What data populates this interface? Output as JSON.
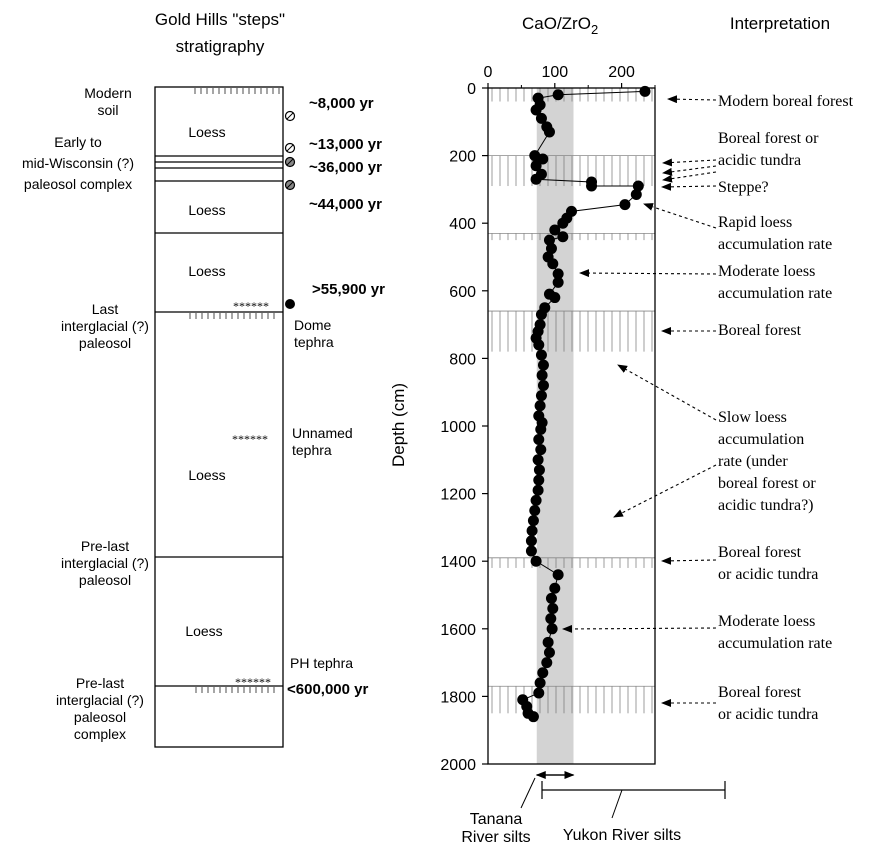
{
  "strat": {
    "title_line1": "Gold Hills \"steps\"",
    "title_line2": "stratigraphy",
    "modern_soil_1": "Modern",
    "modern_soil_2": "soil",
    "loess": "Loess",
    "early_1": "Early to",
    "early_2": "mid-Wisconsin (?)",
    "early_3": "paleosol complex",
    "last_ig_1": "Last",
    "last_ig_2": "interglacial (?)",
    "last_ig_3": "paleosol",
    "prelast_1": "Pre-last",
    "prelast_2": "interglacial (?)",
    "prelast_3": "paleosol",
    "prelast_c1": "Pre-last",
    "prelast_c2": "interglacial (?)",
    "prelast_c3": "paleosol",
    "prelast_c4": "complex",
    "stars": "******",
    "dome_1": "Dome",
    "dome_2": "tephra",
    "unnamed_1": "Unnamed",
    "unnamed_2": "tephra",
    "ph": "PH tephra",
    "age_8000": "~8,000 yr",
    "age_13000": "~13,000 yr",
    "age_36000": "~36,000 yr",
    "age_44000": "~44,000 yr",
    "age_55900": ">55,900 yr",
    "age_600000": "<600,000 yr"
  },
  "chart_data": {
    "type": "scatter",
    "title": "CaO/ZrO2",
    "ylabel": "Depth (cm)",
    "xlim": [
      0,
      250
    ],
    "ylim": [
      0,
      2000
    ],
    "y_inverted": true,
    "x_ticks": [
      "0",
      "100",
      "200"
    ],
    "y_ticks": [
      "0",
      "200",
      "400",
      "600",
      "800",
      "1000",
      "1200",
      "1400",
      "1600",
      "1800",
      "2000"
    ],
    "marker": "filled circle",
    "connected": true,
    "points": [
      {
        "x": 235,
        "y": 10
      },
      {
        "x": 105,
        "y": 20
      },
      {
        "x": 75,
        "y": 30
      },
      {
        "x": 78,
        "y": 50
      },
      {
        "x": 72,
        "y": 65
      },
      {
        "x": 80,
        "y": 90
      },
      {
        "x": 88,
        "y": 115
      },
      {
        "x": 92,
        "y": 130
      },
      {
        "x": 70,
        "y": 200
      },
      {
        "x": 82,
        "y": 210
      },
      {
        "x": 72,
        "y": 230
      },
      {
        "x": 80,
        "y": 255
      },
      {
        "x": 72,
        "y": 270
      },
      {
        "x": 155,
        "y": 278
      },
      {
        "x": 155,
        "y": 290
      },
      {
        "x": 225,
        "y": 290
      },
      {
        "x": 222,
        "y": 315
      },
      {
        "x": 205,
        "y": 345
      },
      {
        "x": 125,
        "y": 365
      },
      {
        "x": 118,
        "y": 385
      },
      {
        "x": 112,
        "y": 400
      },
      {
        "x": 100,
        "y": 420
      },
      {
        "x": 112,
        "y": 440
      },
      {
        "x": 92,
        "y": 450
      },
      {
        "x": 95,
        "y": 475
      },
      {
        "x": 90,
        "y": 500
      },
      {
        "x": 97,
        "y": 520
      },
      {
        "x": 105,
        "y": 550
      },
      {
        "x": 105,
        "y": 575
      },
      {
        "x": 92,
        "y": 610
      },
      {
        "x": 100,
        "y": 620
      },
      {
        "x": 85,
        "y": 650
      },
      {
        "x": 80,
        "y": 670
      },
      {
        "x": 78,
        "y": 700
      },
      {
        "x": 75,
        "y": 720
      },
      {
        "x": 72,
        "y": 740
      },
      {
        "x": 76,
        "y": 760
      },
      {
        "x": 80,
        "y": 790
      },
      {
        "x": 83,
        "y": 820
      },
      {
        "x": 81,
        "y": 850
      },
      {
        "x": 83,
        "y": 880
      },
      {
        "x": 80,
        "y": 910
      },
      {
        "x": 78,
        "y": 940
      },
      {
        "x": 76,
        "y": 970
      },
      {
        "x": 81,
        "y": 990
      },
      {
        "x": 79,
        "y": 1010
      },
      {
        "x": 76,
        "y": 1040
      },
      {
        "x": 79,
        "y": 1070
      },
      {
        "x": 75,
        "y": 1100
      },
      {
        "x": 77,
        "y": 1130
      },
      {
        "x": 76,
        "y": 1160
      },
      {
        "x": 75,
        "y": 1190
      },
      {
        "x": 72,
        "y": 1220
      },
      {
        "x": 70,
        "y": 1250
      },
      {
        "x": 68,
        "y": 1280
      },
      {
        "x": 66,
        "y": 1310
      },
      {
        "x": 65,
        "y": 1340
      },
      {
        "x": 65,
        "y": 1370
      },
      {
        "x": 72,
        "y": 1400
      },
      {
        "x": 105,
        "y": 1440
      },
      {
        "x": 100,
        "y": 1480
      },
      {
        "x": 95,
        "y": 1510
      },
      {
        "x": 97,
        "y": 1540
      },
      {
        "x": 94,
        "y": 1570
      },
      {
        "x": 96,
        "y": 1600
      },
      {
        "x": 90,
        "y": 1640
      },
      {
        "x": 92,
        "y": 1670
      },
      {
        "x": 88,
        "y": 1700
      },
      {
        "x": 82,
        "y": 1730
      },
      {
        "x": 78,
        "y": 1760
      },
      {
        "x": 76,
        "y": 1790
      },
      {
        "x": 52,
        "y": 1810
      },
      {
        "x": 58,
        "y": 1830
      },
      {
        "x": 60,
        "y": 1850
      },
      {
        "x": 68,
        "y": 1860
      }
    ],
    "shaded_band": {
      "x_from": 73,
      "x_to": 128,
      "color": "#d3d3d3"
    },
    "hatched_intervals": [
      [
        0,
        40
      ],
      [
        200,
        290
      ],
      [
        430,
        450
      ],
      [
        660,
        780
      ],
      [
        1390,
        1420
      ],
      [
        1770,
        1850
      ]
    ],
    "interpretation": {
      "title": "Interpretation",
      "labels": [
        [
          "Modern boreal forest"
        ],
        [
          "Boreal forest or",
          "acidic tundra"
        ],
        [
          "Steppe?"
        ],
        [
          "Rapid loess",
          "accumulation rate"
        ],
        [
          "Moderate loess",
          "accumulation rate"
        ],
        [
          "Boreal forest"
        ],
        [
          "Slow loess",
          "accumulation",
          "rate (under",
          "boreal forest or",
          "acidic tundra?)"
        ],
        [
          "Boreal forest",
          "or acidic tundra"
        ],
        [
          "Moderate loess",
          "accumulation rate"
        ],
        [
          "Boreal forest",
          "or acidic tundra"
        ]
      ]
    },
    "ranges": {
      "tanana": [
        "Tanana",
        "River silts"
      ],
      "yukon": "Yukon River silts"
    }
  }
}
